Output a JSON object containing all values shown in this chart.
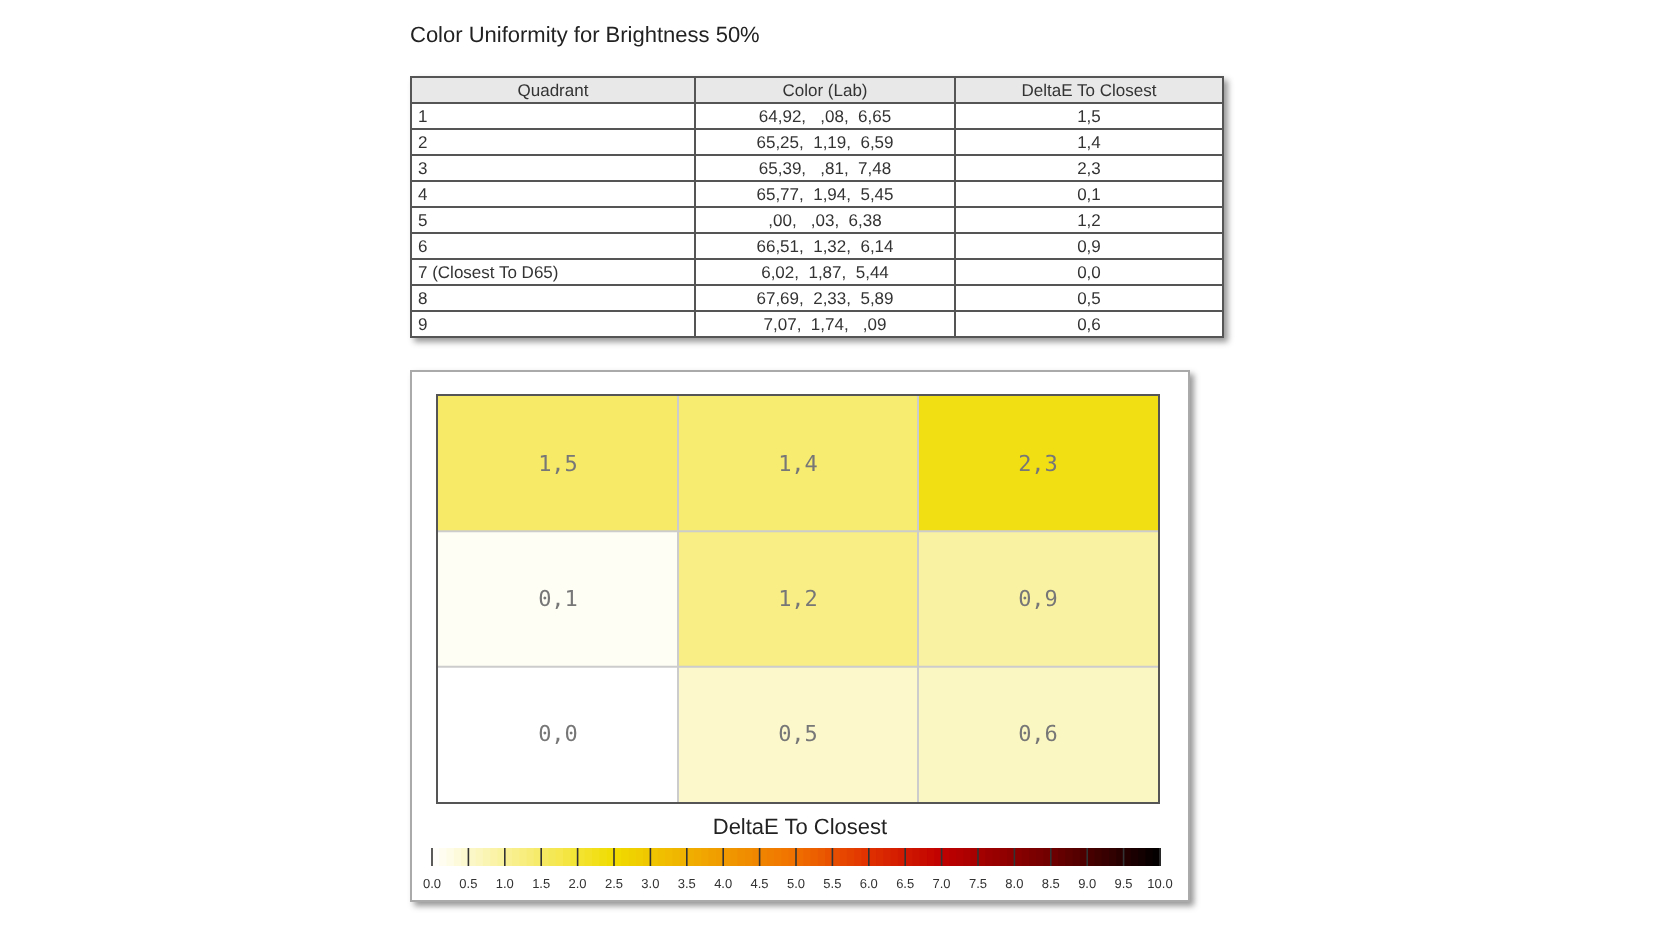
{
  "chart_data": [
    {
      "type": "other",
      "title": "Color Uniformity for Brightness 50%",
      "categories": [
        "Quadrant",
        "Color (Lab)",
        "DeltaE To Closest"
      ],
      "cell_labels": [
        [
          "1",
          "64,92,   ,08,  6,65",
          "1,5"
        ],
        [
          "2",
          "65,25,  1,19,  6,59",
          "1,4"
        ],
        [
          "3",
          "65,39,   ,81,  7,48",
          "2,3"
        ],
        [
          "4",
          "65,77,  1,94,  5,45",
          "0,1"
        ],
        [
          "5",
          ",00,   ,03,  6,38",
          "1,2"
        ],
        [
          "6",
          "66,51,  1,32,  6,14",
          "0,9"
        ],
        [
          "7 (Closest To D65)",
          "6,02,  1,87,  5,44",
          "0,0"
        ],
        [
          "8",
          "67,69,  2,33,  5,89",
          "0,5"
        ],
        [
          "9",
          "7,07,  1,74,   ,09",
          "0,6"
        ]
      ]
    },
    {
      "type": "heatmap",
      "categories": [
        null,
        null,
        null
      ],
      "y_categories": [
        null,
        null,
        null
      ],
      "cells": [
        [
          1.5,
          1.4,
          2.3
        ],
        [
          0.1,
          1.2,
          0.9
        ],
        [
          0.0,
          0.5,
          0.6
        ]
      ],
      "cell_labels": [
        [
          "1,5",
          "1,4",
          "2,3"
        ],
        [
          "0,1",
          "1,2",
          "0,9"
        ],
        [
          "0,0",
          "0,5",
          "0,6"
        ]
      ],
      "clabel": "DeltaE To Closest",
      "clim": [
        0,
        10
      ],
      "grid": true,
      "cticks": [
        {
          "value": 0,
          "label": "0.0"
        },
        {
          "value": 0.5,
          "label": "0.5"
        },
        {
          "value": 1,
          "label": "1.0"
        },
        {
          "value": 1.5,
          "label": "1.5"
        },
        {
          "value": 2,
          "label": "2.0"
        },
        {
          "value": 2.5,
          "label": "2.5"
        },
        {
          "value": 3,
          "label": "3.0"
        },
        {
          "value": 3.5,
          "label": "3.5"
        },
        {
          "value": 4,
          "label": "4.0"
        },
        {
          "value": 4.5,
          "label": "4.5"
        },
        {
          "value": 5,
          "label": "5.0"
        },
        {
          "value": 5.5,
          "label": "5.5"
        },
        {
          "value": 6,
          "label": "6.0"
        },
        {
          "value": 6.5,
          "label": "6.5"
        },
        {
          "value": 7,
          "label": "7.0"
        },
        {
          "value": 7.5,
          "label": "7.5"
        },
        {
          "value": 8,
          "label": "8.0"
        },
        {
          "value": 8.5,
          "label": "8.5"
        },
        {
          "value": 9,
          "label": "9.0"
        },
        {
          "value": 9.5,
          "label": "9.5"
        },
        {
          "value": 10,
          "label": "10.0"
        }
      ]
    }
  ]
}
